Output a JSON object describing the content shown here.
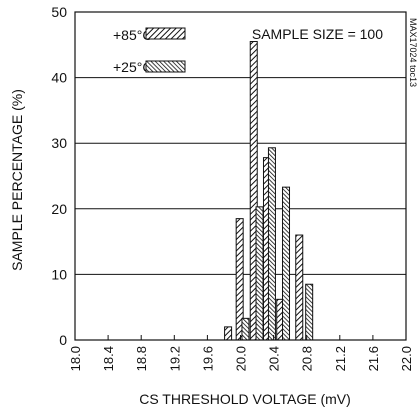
{
  "chart_data": {
    "type": "bar",
    "title": "",
    "xlabel": "CS THRESHOLD VOLTAGE (mV)",
    "ylabel": "SAMPLE PERCENTAGE (%)",
    "annotation": "SAMPLE SIZE = 100",
    "part_id": "MAX17024 toc13",
    "xlim": [
      18.0,
      22.0
    ],
    "ylim": [
      0,
      50
    ],
    "x_ticks": [
      "18.0",
      "18.4",
      "18.8",
      "19.2",
      "19.6",
      "20.0",
      "20.4",
      "20.8",
      "21.2",
      "21.6",
      "22.0"
    ],
    "y_ticks": [
      "0",
      "10",
      "20",
      "30",
      "40",
      "50"
    ],
    "grid": "horizontal",
    "legend_position": "top-left",
    "series": [
      {
        "name": "+85°C",
        "hatch": "diagonal",
        "points": [
          {
            "x": 19.85,
            "y": 2
          },
          {
            "x": 19.99,
            "y": 18.5
          },
          {
            "x": 20.16,
            "y": 45.5
          },
          {
            "x": 20.32,
            "y": 27.8
          },
          {
            "x": 20.48,
            "y": 6.2
          },
          {
            "x": 20.71,
            "y": 16
          }
        ]
      },
      {
        "name": "+25°C",
        "hatch": "diagonal-dense",
        "points": [
          {
            "x": 20.06,
            "y": 3.3
          },
          {
            "x": 20.23,
            "y": 20.3
          },
          {
            "x": 20.38,
            "y": 29.3
          },
          {
            "x": 20.55,
            "y": 23.3
          },
          {
            "x": 20.83,
            "y": 8.5
          }
        ]
      }
    ]
  },
  "colors": {
    "bar_stroke": "#111111",
    "grid": "#111111",
    "background": "#ffffff"
  }
}
